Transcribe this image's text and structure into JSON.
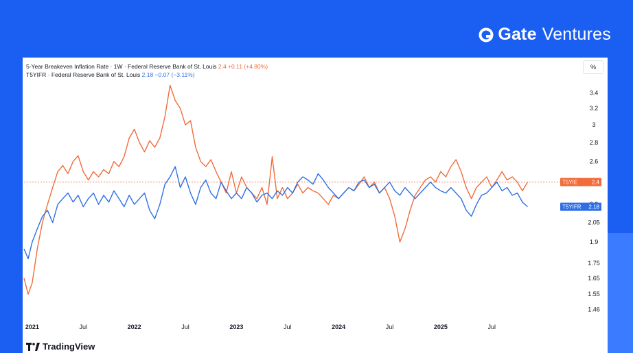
{
  "brand": {
    "name_bold": "Gate",
    "name_light": "Ventures",
    "logo_icon": "gate-logo-icon"
  },
  "legend": {
    "row1_label": "5-Year Breakeven Inflation Rate · 1W · Federal Reserve Bank of St. Louis",
    "row1_value": "2.4",
    "row1_change": "+0.11 (+4.80%)",
    "row2_label": "T5YIFR · Federal Reserve Bank of St. Louis",
    "row2_value": "2.18",
    "row2_change": "−0.07 (−3.11%)"
  },
  "scale_button": "%",
  "footer": {
    "logo_text": "TradingView",
    "logo_icon": "tradingview-logo-icon"
  },
  "colors": {
    "t5yie": "#f26b3a",
    "t5yifr": "#2d6fe6",
    "accent_bg": "#1b5ff2"
  },
  "chart_data": {
    "type": "line",
    "ylim": [
      1.42,
      3.6
    ],
    "y_scale": "log",
    "y_ticks": [
      3.4,
      3.2,
      3,
      2.8,
      2.6,
      2.4,
      2.2,
      2.05,
      1.9,
      1.75,
      1.65,
      1.55,
      1.46
    ],
    "x_ticks": [
      {
        "label": "2021",
        "x": 2021.0
      },
      {
        "label": "Jul",
        "x": 2021.5
      },
      {
        "label": "2022",
        "x": 2022.0
      },
      {
        "label": "Jul",
        "x": 2022.5
      },
      {
        "label": "2023",
        "x": 2023.0
      },
      {
        "label": "Jul",
        "x": 2023.5
      },
      {
        "label": "2024",
        "x": 2024.0
      },
      {
        "label": "Jul",
        "x": 2024.5
      },
      {
        "label": "2025",
        "x": 2025.0
      },
      {
        "label": "Jul",
        "x": 2025.5
      }
    ],
    "xlim": [
      2020.92,
      2026.15
    ],
    "grid": false,
    "last_value_line": 2.4,
    "series": [
      {
        "name": "T5YIE",
        "badge_label": "T5YIE",
        "badge_value": "2.4",
        "color": "#f26b3a",
        "points": [
          [
            2020.92,
            1.65
          ],
          [
            2020.96,
            1.55
          ],
          [
            2021.0,
            1.62
          ],
          [
            2021.05,
            1.85
          ],
          [
            2021.1,
            2.05
          ],
          [
            2021.15,
            2.2
          ],
          [
            2021.2,
            2.35
          ],
          [
            2021.25,
            2.5
          ],
          [
            2021.3,
            2.56
          ],
          [
            2021.35,
            2.48
          ],
          [
            2021.4,
            2.6
          ],
          [
            2021.45,
            2.66
          ],
          [
            2021.5,
            2.5
          ],
          [
            2021.55,
            2.42
          ],
          [
            2021.6,
            2.5
          ],
          [
            2021.65,
            2.45
          ],
          [
            2021.7,
            2.52
          ],
          [
            2021.75,
            2.48
          ],
          [
            2021.8,
            2.6
          ],
          [
            2021.85,
            2.55
          ],
          [
            2021.9,
            2.65
          ],
          [
            2021.95,
            2.85
          ],
          [
            2022.0,
            2.95
          ],
          [
            2022.05,
            2.8
          ],
          [
            2022.1,
            2.7
          ],
          [
            2022.15,
            2.82
          ],
          [
            2022.2,
            2.75
          ],
          [
            2022.25,
            2.85
          ],
          [
            2022.3,
            3.1
          ],
          [
            2022.35,
            3.5
          ],
          [
            2022.4,
            3.3
          ],
          [
            2022.45,
            3.2
          ],
          [
            2022.5,
            3.0
          ],
          [
            2022.55,
            3.05
          ],
          [
            2022.6,
            2.75
          ],
          [
            2022.65,
            2.6
          ],
          [
            2022.7,
            2.55
          ],
          [
            2022.75,
            2.62
          ],
          [
            2022.8,
            2.5
          ],
          [
            2022.85,
            2.4
          ],
          [
            2022.9,
            2.3
          ],
          [
            2022.95,
            2.5
          ],
          [
            2023.0,
            2.3
          ],
          [
            2023.05,
            2.45
          ],
          [
            2023.1,
            2.35
          ],
          [
            2023.15,
            2.3
          ],
          [
            2023.2,
            2.25
          ],
          [
            2023.25,
            2.35
          ],
          [
            2023.3,
            2.2
          ],
          [
            2023.35,
            2.65
          ],
          [
            2023.4,
            2.25
          ],
          [
            2023.45,
            2.35
          ],
          [
            2023.5,
            2.25
          ],
          [
            2023.55,
            2.3
          ],
          [
            2023.6,
            2.38
          ],
          [
            2023.65,
            2.3
          ],
          [
            2023.7,
            2.35
          ],
          [
            2023.75,
            2.32
          ],
          [
            2023.8,
            2.3
          ],
          [
            2023.85,
            2.25
          ],
          [
            2023.9,
            2.2
          ],
          [
            2023.95,
            2.28
          ],
          [
            2024.0,
            2.25
          ],
          [
            2024.05,
            2.3
          ],
          [
            2024.1,
            2.35
          ],
          [
            2024.15,
            2.32
          ],
          [
            2024.2,
            2.38
          ],
          [
            2024.25,
            2.45
          ],
          [
            2024.3,
            2.35
          ],
          [
            2024.35,
            2.4
          ],
          [
            2024.4,
            2.3
          ],
          [
            2024.45,
            2.35
          ],
          [
            2024.5,
            2.25
          ],
          [
            2024.55,
            2.1
          ],
          [
            2024.6,
            1.9
          ],
          [
            2024.65,
            2.0
          ],
          [
            2024.7,
            2.15
          ],
          [
            2024.75,
            2.28
          ],
          [
            2024.8,
            2.35
          ],
          [
            2024.85,
            2.42
          ],
          [
            2024.9,
            2.45
          ],
          [
            2024.95,
            2.4
          ],
          [
            2025.0,
            2.5
          ],
          [
            2025.05,
            2.45
          ],
          [
            2025.1,
            2.55
          ],
          [
            2025.15,
            2.62
          ],
          [
            2025.2,
            2.5
          ],
          [
            2025.25,
            2.35
          ],
          [
            2025.3,
            2.25
          ],
          [
            2025.35,
            2.35
          ],
          [
            2025.4,
            2.4
          ],
          [
            2025.45,
            2.45
          ],
          [
            2025.5,
            2.35
          ],
          [
            2025.55,
            2.42
          ],
          [
            2025.6,
            2.5
          ],
          [
            2025.65,
            2.42
          ],
          [
            2025.7,
            2.45
          ],
          [
            2025.75,
            2.4
          ],
          [
            2025.8,
            2.32
          ],
          [
            2025.85,
            2.4
          ]
        ]
      },
      {
        "name": "T5YIFR",
        "badge_label": "T5YIFR",
        "badge_value": "2.18",
        "color": "#2d6fe6",
        "points": [
          [
            2020.92,
            1.85
          ],
          [
            2020.96,
            1.78
          ],
          [
            2021.0,
            1.9
          ],
          [
            2021.05,
            2.0
          ],
          [
            2021.1,
            2.1
          ],
          [
            2021.15,
            2.15
          ],
          [
            2021.2,
            2.05
          ],
          [
            2021.25,
            2.2
          ],
          [
            2021.3,
            2.25
          ],
          [
            2021.35,
            2.3
          ],
          [
            2021.4,
            2.22
          ],
          [
            2021.45,
            2.28
          ],
          [
            2021.5,
            2.18
          ],
          [
            2021.55,
            2.25
          ],
          [
            2021.6,
            2.3
          ],
          [
            2021.65,
            2.2
          ],
          [
            2021.7,
            2.28
          ],
          [
            2021.75,
            2.22
          ],
          [
            2021.8,
            2.32
          ],
          [
            2021.85,
            2.25
          ],
          [
            2021.9,
            2.18
          ],
          [
            2021.95,
            2.28
          ],
          [
            2022.0,
            2.2
          ],
          [
            2022.05,
            2.25
          ],
          [
            2022.1,
            2.3
          ],
          [
            2022.15,
            2.15
          ],
          [
            2022.2,
            2.08
          ],
          [
            2022.25,
            2.2
          ],
          [
            2022.3,
            2.38
          ],
          [
            2022.35,
            2.45
          ],
          [
            2022.4,
            2.55
          ],
          [
            2022.45,
            2.35
          ],
          [
            2022.5,
            2.45
          ],
          [
            2022.55,
            2.3
          ],
          [
            2022.6,
            2.2
          ],
          [
            2022.65,
            2.35
          ],
          [
            2022.7,
            2.42
          ],
          [
            2022.75,
            2.3
          ],
          [
            2022.8,
            2.25
          ],
          [
            2022.85,
            2.4
          ],
          [
            2022.9,
            2.32
          ],
          [
            2022.95,
            2.25
          ],
          [
            2023.0,
            2.3
          ],
          [
            2023.05,
            2.25
          ],
          [
            2023.1,
            2.35
          ],
          [
            2023.15,
            2.3
          ],
          [
            2023.2,
            2.22
          ],
          [
            2023.25,
            2.28
          ],
          [
            2023.3,
            2.3
          ],
          [
            2023.35,
            2.25
          ],
          [
            2023.4,
            2.32
          ],
          [
            2023.45,
            2.28
          ],
          [
            2023.5,
            2.35
          ],
          [
            2023.55,
            2.3
          ],
          [
            2023.6,
            2.4
          ],
          [
            2023.65,
            2.45
          ],
          [
            2023.7,
            2.42
          ],
          [
            2023.75,
            2.38
          ],
          [
            2023.8,
            2.48
          ],
          [
            2023.85,
            2.42
          ],
          [
            2023.9,
            2.35
          ],
          [
            2023.95,
            2.3
          ],
          [
            2024.0,
            2.25
          ],
          [
            2024.05,
            2.3
          ],
          [
            2024.1,
            2.35
          ],
          [
            2024.15,
            2.32
          ],
          [
            2024.2,
            2.4
          ],
          [
            2024.25,
            2.42
          ],
          [
            2024.3,
            2.35
          ],
          [
            2024.35,
            2.38
          ],
          [
            2024.4,
            2.3
          ],
          [
            2024.45,
            2.35
          ],
          [
            2024.5,
            2.4
          ],
          [
            2024.55,
            2.32
          ],
          [
            2024.6,
            2.28
          ],
          [
            2024.65,
            2.35
          ],
          [
            2024.7,
            2.3
          ],
          [
            2024.75,
            2.25
          ],
          [
            2024.8,
            2.3
          ],
          [
            2024.85,
            2.35
          ],
          [
            2024.9,
            2.4
          ],
          [
            2024.95,
            2.35
          ],
          [
            2025.0,
            2.32
          ],
          [
            2025.05,
            2.3
          ],
          [
            2025.1,
            2.35
          ],
          [
            2025.15,
            2.3
          ],
          [
            2025.2,
            2.25
          ],
          [
            2025.25,
            2.15
          ],
          [
            2025.3,
            2.1
          ],
          [
            2025.35,
            2.2
          ],
          [
            2025.4,
            2.28
          ],
          [
            2025.45,
            2.3
          ],
          [
            2025.5,
            2.35
          ],
          [
            2025.55,
            2.4
          ],
          [
            2025.6,
            2.32
          ],
          [
            2025.65,
            2.35
          ],
          [
            2025.7,
            2.28
          ],
          [
            2025.75,
            2.3
          ],
          [
            2025.8,
            2.22
          ],
          [
            2025.85,
            2.18
          ]
        ]
      }
    ]
  }
}
